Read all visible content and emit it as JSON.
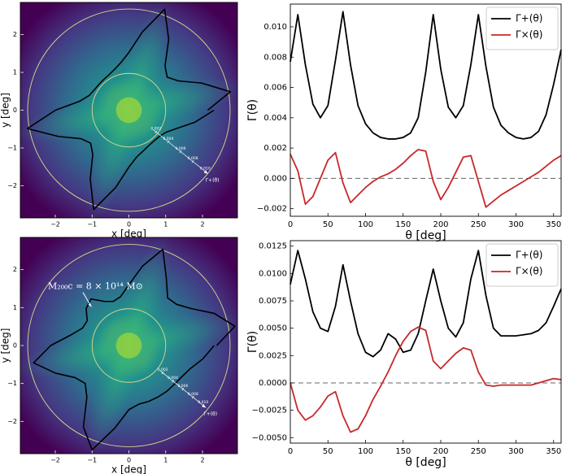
{
  "chart_data": [
    {
      "type": "image",
      "xlabel": "x [deg]",
      "ylabel": "y [deg]",
      "xlim": [
        -2.95,
        2.95
      ],
      "ylim": [
        -2.85,
        2.85
      ],
      "xticks": [
        {
          "value": -2,
          "label": "−2"
        },
        {
          "value": -1,
          "label": "−1"
        },
        0,
        1,
        2
      ],
      "yticks": [
        {
          "value": -2,
          "label": "−2"
        },
        {
          "value": -1,
          "label": "−1"
        },
        0,
        1,
        2
      ],
      "rticks": [
        0.002,
        0.004,
        0.006,
        0.008,
        {
          "value": 0.01,
          "label": "0.010"
        }
      ],
      "rlabel": "Γ+(θ)",
      "contour_color": "#000000"
    },
    {
      "type": "line",
      "xlabel": "θ [deg]",
      "ylabel": "Γ(θ)",
      "x": [
        0,
        10,
        20,
        30,
        40,
        50,
        60,
        70,
        80,
        90,
        100,
        110,
        120,
        130,
        140,
        150,
        160,
        170,
        180,
        190,
        200,
        210,
        220,
        230,
        240,
        250,
        260,
        270,
        280,
        290,
        300,
        310,
        320,
        330,
        340,
        350,
        360
      ],
      "xlim": [
        0,
        360
      ],
      "xticks": [
        0,
        50,
        100,
        150,
        200,
        250,
        300,
        350
      ],
      "ylim": [
        -0.0025,
        0.0115
      ],
      "yticks": [
        {
          "value": -0.002,
          "label": "−0.002"
        },
        {
          "value": 0,
          "label": "0.000"
        },
        0.002,
        0.004,
        0.006,
        0.008,
        {
          "value": 0.01,
          "label": "0.010"
        }
      ],
      "hline": 0,
      "legend": "upper right",
      "series": [
        {
          "name": "Γ+(θ)",
          "color": "#000000",
          "values": [
            0.0077,
            0.0108,
            0.0075,
            0.0049,
            0.004,
            0.0048,
            0.0078,
            0.011,
            0.0075,
            0.0048,
            0.0036,
            0.003,
            0.0027,
            0.0026,
            0.0026,
            0.0027,
            0.003,
            0.004,
            0.007,
            0.0108,
            0.0072,
            0.0047,
            0.004,
            0.0048,
            0.0075,
            0.0108,
            0.0074,
            0.0047,
            0.0035,
            0.003,
            0.0027,
            0.0026,
            0.0027,
            0.0031,
            0.0042,
            0.0062,
            0.0085
          ]
        },
        {
          "name": "Γ×(θ)",
          "color": "#c8282a",
          "values": [
            0.0016,
            0.0005,
            -0.0017,
            -0.0012,
            0,
            0.0012,
            0.0017,
            -0.0003,
            -0.0016,
            -0.0011,
            -0.0006,
            -0.0002,
            0.0001,
            0.0003,
            0.0006,
            0.001,
            0.0015,
            0.0019,
            0.0018,
            -0.0002,
            -0.0014,
            -0.0006,
            0.0004,
            0.0014,
            0.0015,
            -0.0002,
            -0.0019,
            -0.0015,
            -0.0011,
            -0.0008,
            -0.0005,
            -0.0002,
            0.0001,
            0.0004,
            0.0008,
            0.0012,
            0.0015
          ]
        }
      ]
    },
    {
      "type": "image",
      "xlabel": "x [deg]",
      "ylabel": "y [deg]",
      "xlim": [
        -2.95,
        2.95
      ],
      "ylim": [
        -2.85,
        2.85
      ],
      "xticks": [
        {
          "value": -2,
          "label": "−2"
        },
        {
          "value": -1,
          "label": "−1"
        },
        0,
        1,
        2
      ],
      "yticks": [
        {
          "value": -2,
          "label": "−2"
        },
        {
          "value": -1,
          "label": "−1"
        },
        0,
        1,
        2
      ],
      "rticks": [
        0.002,
        0.004,
        0.006,
        0.008,
        {
          "value": 0.01,
          "label": "0.010"
        }
      ],
      "rlabel": "Γ+(θ)",
      "annotation": "M₂₀₀c = 8 × 10¹⁴ M⊙",
      "contour_color": "#000000"
    },
    {
      "type": "line",
      "xlabel": "θ [deg]",
      "ylabel": "Γ(θ)",
      "x": [
        0,
        10,
        20,
        30,
        40,
        50,
        60,
        70,
        80,
        90,
        100,
        110,
        120,
        130,
        140,
        150,
        160,
        170,
        180,
        190,
        200,
        210,
        220,
        230,
        240,
        250,
        260,
        270,
        280,
        290,
        300,
        310,
        320,
        330,
        340,
        350,
        360
      ],
      "xlim": [
        0,
        360
      ],
      "xticks": [
        0,
        50,
        100,
        150,
        200,
        250,
        300,
        350
      ],
      "ylim": [
        -0.0055,
        0.013
      ],
      "yticks": [
        {
          "value": -0.005,
          "label": "−0.0050"
        },
        {
          "value": -0.0025,
          "label": "−0.0025"
        },
        {
          "value": 0,
          "label": "0.0000"
        },
        0.0025,
        {
          "value": 0.005,
          "label": "0.0050"
        },
        0.0075,
        {
          "value": 0.01,
          "label": "0.0100"
        },
        0.0125
      ],
      "hline": 0,
      "legend": "upper right",
      "series": [
        {
          "name": "Γ+(θ)",
          "color": "#000000",
          "values": [
            0.009,
            0.0121,
            0.0095,
            0.0065,
            0.005,
            0.0047,
            0.007,
            0.0108,
            0.0075,
            0.0045,
            0.0028,
            0.0024,
            0.003,
            0.0045,
            0.004,
            0.0028,
            0.003,
            0.0045,
            0.0075,
            0.0104,
            0.0075,
            0.005,
            0.0042,
            0.0055,
            0.0095,
            0.0121,
            0.008,
            0.005,
            0.0043,
            0.0043,
            0.0043,
            0.0044,
            0.0045,
            0.0048,
            0.0055,
            0.007,
            0.0086
          ]
        },
        {
          "name": "Γ×(θ)",
          "color": "#c8282a",
          "values": [
            0,
            -0.0025,
            -0.0034,
            -0.003,
            -0.0022,
            -0.0012,
            -0.0008,
            -0.003,
            -0.0045,
            -0.0042,
            -0.003,
            -0.0015,
            -0.0003,
            0.001,
            0.0025,
            0.0038,
            0.0047,
            0.0051,
            0.0048,
            0.002,
            0.0013,
            0.002,
            0.0027,
            0.0032,
            0.003,
            0.001,
            -0.0002,
            -0.0003,
            -0.0002,
            -0.0002,
            -0.0002,
            -0.0002,
            -0.0002,
            0,
            0.0002,
            0.0004,
            0.0003
          ]
        }
      ]
    }
  ]
}
